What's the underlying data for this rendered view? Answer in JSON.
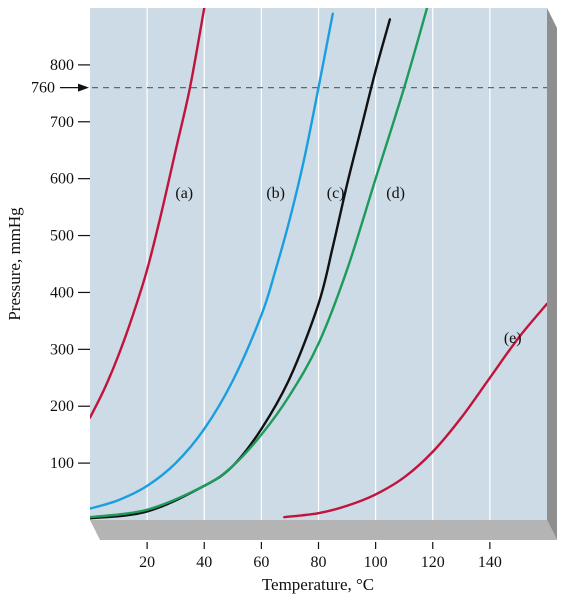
{
  "chart_data": {
    "type": "line",
    "title": "",
    "xlabel": "Temperature, °C",
    "ylabel": "Pressure, mmHg",
    "xlim": [
      0,
      160
    ],
    "ylim": [
      0,
      900
    ],
    "x_ticks": [
      20,
      40,
      60,
      80,
      100,
      120,
      140
    ],
    "y_ticks": [
      100,
      200,
      300,
      400,
      500,
      600,
      700,
      800
    ],
    "reference_line": {
      "y": 760,
      "label": "760",
      "style": "dashed",
      "arrow": true
    },
    "grid": "vertical lines",
    "series": [
      {
        "label": "(a)",
        "color": "#c0143c",
        "points": [
          [
            0,
            180
          ],
          [
            5,
            230
          ],
          [
            10,
            290
          ],
          [
            15,
            360
          ],
          [
            20,
            440
          ],
          [
            25,
            540
          ],
          [
            30,
            650
          ],
          [
            35,
            760
          ],
          [
            40,
            900
          ]
        ]
      },
      {
        "label": "(b)",
        "color": "#1a9ee0",
        "points": [
          [
            0,
            20
          ],
          [
            10,
            35
          ],
          [
            20,
            60
          ],
          [
            30,
            100
          ],
          [
            40,
            160
          ],
          [
            50,
            245
          ],
          [
            60,
            360
          ],
          [
            65,
            440
          ],
          [
            70,
            530
          ],
          [
            75,
            635
          ],
          [
            80,
            760
          ],
          [
            85,
            890
          ]
        ]
      },
      {
        "label": "(c)",
        "color": "#111111",
        "points": [
          [
            0,
            3
          ],
          [
            20,
            15
          ],
          [
            40,
            60
          ],
          [
            50,
            95
          ],
          [
            60,
            160
          ],
          [
            70,
            250
          ],
          [
            80,
            380
          ],
          [
            85,
            480
          ],
          [
            90,
            590
          ],
          [
            95,
            690
          ],
          [
            100,
            790
          ],
          [
            105,
            880
          ]
        ]
      },
      {
        "label": "(d)",
        "color": "#1e9a5a",
        "points": [
          [
            0,
            5
          ],
          [
            20,
            18
          ],
          [
            40,
            60
          ],
          [
            50,
            95
          ],
          [
            60,
            150
          ],
          [
            70,
            220
          ],
          [
            80,
            310
          ],
          [
            90,
            440
          ],
          [
            100,
            600
          ],
          [
            110,
            760
          ],
          [
            118,
            900
          ]
        ]
      },
      {
        "label": "(e)",
        "color": "#c0143c",
        "points": [
          [
            68,
            5
          ],
          [
            80,
            12
          ],
          [
            90,
            25
          ],
          [
            100,
            45
          ],
          [
            110,
            75
          ],
          [
            120,
            120
          ],
          [
            130,
            180
          ],
          [
            140,
            250
          ],
          [
            150,
            320
          ],
          [
            160,
            380
          ]
        ]
      }
    ],
    "label_positions": [
      {
        "label": "(a)",
        "x": 33,
        "y": 575
      },
      {
        "label": "(b)",
        "x": 65,
        "y": 575
      },
      {
        "label": "(c)",
        "x": 86,
        "y": 575
      },
      {
        "label": "(d)",
        "x": 107,
        "y": 575
      },
      {
        "label": "(e)",
        "x": 148,
        "y": 320
      }
    ]
  }
}
